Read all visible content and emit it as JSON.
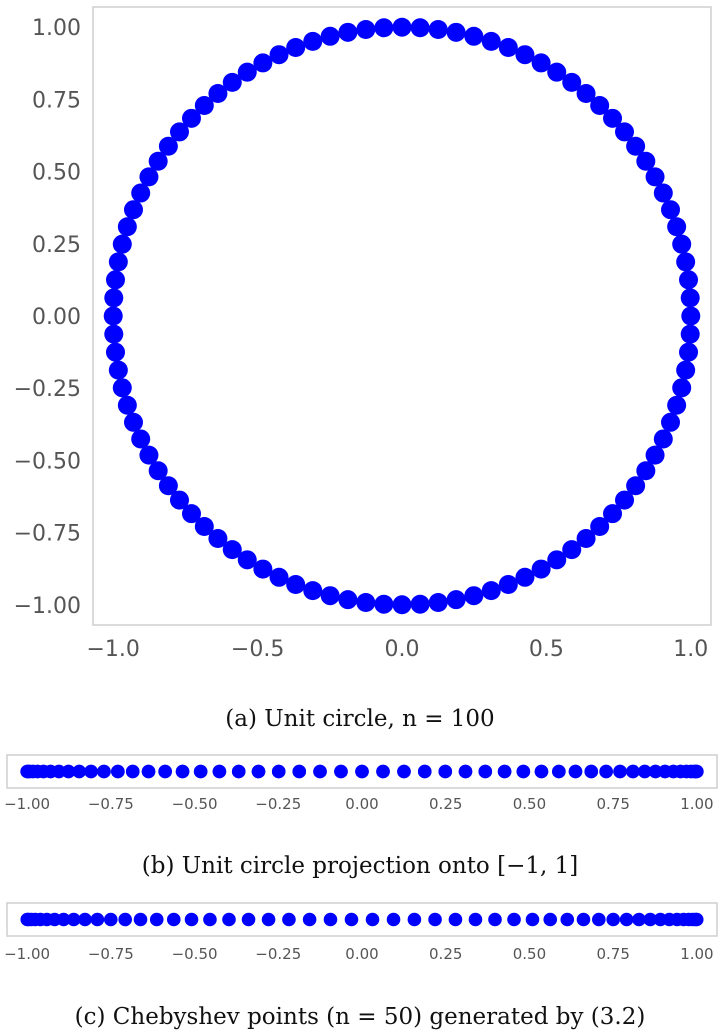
{
  "captions": {
    "a": "(a) Unit circle, n = 100",
    "b": "(b) Unit circle projection onto [−1, 1]",
    "c": "(c) Chebyshev points (n = 50) generated by (3.2)"
  },
  "colors": {
    "points": "#0000ff",
    "frame": "#cfcfcf",
    "tick_text": "#555555"
  },
  "chart_data": [
    {
      "type": "scatter",
      "title": "",
      "xlabel": "",
      "ylabel": "",
      "xlim": [
        -1.07,
        1.07
      ],
      "ylim": [
        -1.07,
        1.07
      ],
      "grid": false,
      "x_ticks": [
        "−1.0",
        "−0.5",
        "0.0",
        "0.5",
        "1.0"
      ],
      "x_tick_values": [
        -1.0,
        -0.5,
        0.0,
        0.5,
        1.0
      ],
      "y_ticks": [
        "1.00",
        "0.75",
        "0.50",
        "0.25",
        "0.00",
        "−0.25",
        "−0.50",
        "−0.75",
        "−1.00"
      ],
      "y_tick_values": [
        1.0,
        0.75,
        0.5,
        0.25,
        0.0,
        -0.25,
        -0.5,
        -0.75,
        -1.0
      ],
      "n": 100,
      "generator": "x = cos(2πk/n), y = sin(2πk/n), k = 0..n-1"
    },
    {
      "type": "scatter",
      "title": "",
      "xlim": [
        -1.06,
        1.06
      ],
      "grid": false,
      "x_ticks": [
        "−1.00",
        "−0.75",
        "−0.50",
        "−0.25",
        "0.00",
        "0.25",
        "0.50",
        "0.75",
        "1.00"
      ],
      "x_tick_values": [
        -1.0,
        -0.75,
        -0.5,
        -0.25,
        0.0,
        0.25,
        0.5,
        0.75,
        1.0
      ],
      "n": 100,
      "generator": "x = cos(2πk/n), y = 0"
    },
    {
      "type": "scatter",
      "title": "",
      "xlim": [
        -1.06,
        1.06
      ],
      "grid": false,
      "x_ticks": [
        "−1.00",
        "−0.75",
        "−0.50",
        "−0.25",
        "0.00",
        "0.25",
        "0.50",
        "0.75",
        "1.00"
      ],
      "x_tick_values": [
        -1.0,
        -0.75,
        -0.5,
        -0.25,
        0.0,
        0.25,
        0.5,
        0.75,
        1.0
      ],
      "n": 50,
      "generator": "x = cos((2k−1)π/(2n)), k = 1..n"
    }
  ]
}
